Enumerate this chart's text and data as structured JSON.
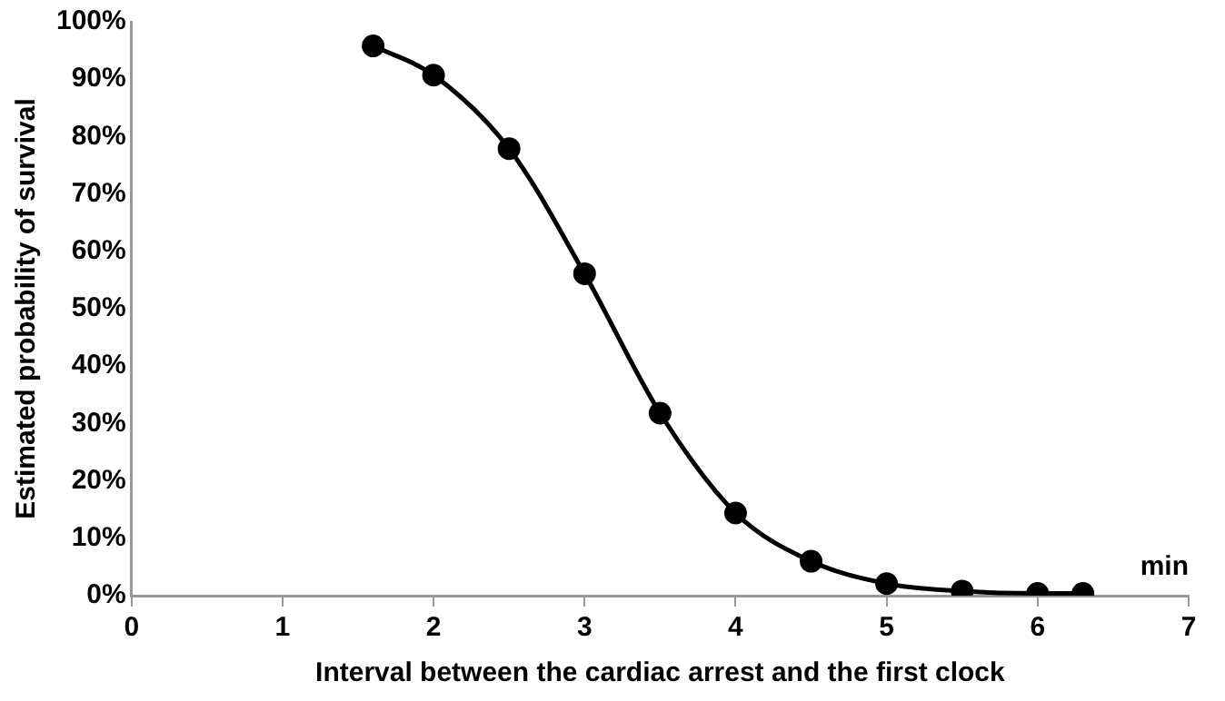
{
  "chart_data": {
    "type": "line",
    "xlabel": "Interval between the cardiac arrest and the first clock",
    "ylabel": "Estimated probability of survival",
    "annotations": [
      "min"
    ],
    "x": [
      1.6,
      2.0,
      2.5,
      3.0,
      3.5,
      4.0,
      4.5,
      5.0,
      5.5,
      6.0,
      6.3
    ],
    "series": [
      {
        "color": "#000000",
        "values": [
          95.8,
          90.7,
          77.9,
          56.1,
          31.8,
          14.4,
          6.0,
          2.1,
          0.8,
          0.4,
          0.4
        ]
      }
    ],
    "xlim": [
      0,
      7
    ],
    "xticks": [
      0,
      1,
      2,
      3,
      4,
      5,
      6,
      7
    ],
    "ylim": [
      0,
      100
    ],
    "yticks": [
      {
        "value": 0,
        "label": "0%"
      },
      {
        "value": 10,
        "label": "10%"
      },
      {
        "value": 20,
        "label": "20%"
      },
      {
        "value": 30,
        "label": "30%"
      },
      {
        "value": 40,
        "label": "40%"
      },
      {
        "value": 50,
        "label": "50%"
      },
      {
        "value": 60,
        "label": "60%"
      },
      {
        "value": 70,
        "label": "70%"
      },
      {
        "value": 80,
        "label": "80%"
      },
      {
        "value": 90,
        "label": "90%"
      },
      {
        "value": 100,
        "label": "100%"
      }
    ],
    "grid": false,
    "legend": false,
    "marker": "circle",
    "line_style": "solid"
  }
}
